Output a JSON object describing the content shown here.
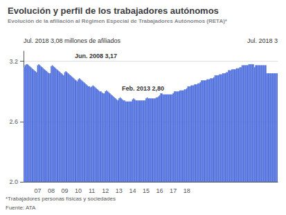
{
  "chart_data": {
    "type": "bar",
    "title": "Evolución y perfil de los trabajadores autónomos",
    "subtitle": "Evolución de la afiliación al Régimen Especial de Trabajadores Autónomos (RETA)*",
    "annotations": [
      "Jul. 2018 3,08 millones de afiliados",
      "Jul. 2018 3",
      "Jun. 2008 3,17",
      "Feb. 2013 2,80"
    ],
    "footnotes": [
      "*Trabajadores personas físicas y sociedades",
      "Fuente: ATA"
    ],
    "ylim": [
      2.0,
      3.3
    ],
    "yticks": [
      {
        "value": 2.0,
        "label": "2.0"
      },
      2.6,
      3.2
    ],
    "grid": true,
    "categories": [
      null,
      null,
      null,
      null,
      null,
      null,
      null,
      null,
      null,
      null,
      null,
      null,
      "07",
      null,
      null,
      null,
      null,
      null,
      null,
      null,
      null,
      null,
      null,
      null,
      "08",
      null,
      null,
      null,
      null,
      null,
      null,
      null,
      null,
      null,
      null,
      null,
      "09",
      null,
      null,
      null,
      null,
      null,
      null,
      null,
      null,
      null,
      null,
      null,
      "10",
      null,
      null,
      null,
      null,
      null,
      null,
      null,
      null,
      null,
      null,
      null,
      "11",
      null,
      null,
      null,
      null,
      null,
      null,
      null,
      null,
      null,
      null,
      null,
      "12",
      null,
      null,
      null,
      null,
      null,
      null,
      null,
      null,
      null,
      null,
      null,
      "13",
      null,
      null,
      null,
      null,
      null,
      null,
      null,
      null,
      null,
      null,
      null,
      "14",
      null,
      null,
      null,
      null,
      null,
      null,
      null,
      null,
      null,
      null,
      null,
      "15",
      null,
      null,
      null,
      null,
      null,
      null,
      null,
      null,
      null,
      null,
      null,
      "16",
      null,
      null,
      null,
      null,
      null,
      null,
      null,
      null,
      null,
      null,
      null,
      "17",
      null,
      null,
      null,
      null,
      null,
      null,
      null,
      null,
      null,
      null,
      null,
      "18",
      null,
      null,
      null,
      null,
      null,
      null,
      null,
      null,
      null,
      null,
      null,
      null,
      null,
      null,
      null,
      null,
      null,
      null,
      null,
      null,
      null,
      null,
      null,
      null,
      null,
      null,
      null,
      null,
      null,
      null,
      null,
      null,
      null,
      null,
      null,
      null,
      null,
      null,
      null,
      null,
      null,
      null,
      null,
      null,
      null,
      null,
      null,
      null,
      null,
      null,
      null,
      null,
      null,
      null,
      null,
      null,
      null,
      null,
      null,
      null,
      null,
      null,
      null,
      null,
      null,
      null,
      null,
      null,
      null,
      null,
      null,
      null,
      null,
      null,
      null,
      null,
      null,
      null,
      null,
      null
    ],
    "values": [
      3.14,
      3.16,
      3.17,
      3.17,
      3.16,
      3.15,
      3.14,
      3.13,
      3.12,
      3.11,
      3.1,
      3.09,
      3.16,
      3.17,
      3.16,
      3.15,
      3.14,
      3.13,
      3.12,
      3.11,
      3.1,
      3.09,
      3.08,
      3.08,
      3.15,
      3.16,
      3.15,
      3.14,
      3.13,
      3.12,
      3.11,
      3.1,
      3.09,
      3.08,
      3.07,
      3.06,
      3.09,
      3.1,
      3.09,
      3.08,
      3.07,
      3.06,
      3.05,
      3.04,
      3.03,
      3.02,
      3.01,
      3.0,
      3.02,
      3.03,
      3.02,
      3.01,
      3.0,
      2.99,
      2.98,
      2.97,
      2.96,
      2.95,
      2.95,
      2.94,
      2.95,
      2.96,
      2.95,
      2.94,
      2.93,
      2.92,
      2.91,
      2.9,
      2.9,
      2.89,
      2.88,
      2.88,
      2.9,
      2.91,
      2.9,
      2.89,
      2.88,
      2.87,
      2.86,
      2.85,
      2.84,
      2.83,
      2.82,
      2.81,
      2.83,
      2.84,
      2.83,
      2.82,
      2.81,
      2.81,
      2.8,
      2.8,
      2.8,
      2.8,
      2.8,
      2.8,
      2.82,
      2.83,
      2.82,
      2.81,
      2.81,
      2.81,
      2.81,
      2.81,
      2.81,
      2.81,
      2.81,
      2.81,
      2.83,
      2.84,
      2.83,
      2.83,
      2.83,
      2.83,
      2.83,
      2.83,
      2.83,
      2.84,
      2.84,
      2.85,
      2.86,
      2.88,
      2.88,
      2.87,
      2.87,
      2.87,
      2.87,
      2.87,
      2.87,
      2.87,
      2.87,
      2.87,
      2.88,
      2.9,
      2.9,
      2.9,
      2.9,
      2.9,
      2.91,
      2.91,
      2.91,
      2.91,
      2.92,
      2.92,
      2.93,
      2.95,
      2.95,
      2.95,
      2.96,
      2.96,
      2.96,
      2.97,
      2.97,
      2.97,
      2.98,
      2.98,
      2.99,
      3.01,
      3.01,
      3.01,
      3.01,
      3.01,
      3.02,
      3.02,
      3.02,
      3.03,
      3.03,
      3.03,
      3.04,
      3.06,
      3.06,
      3.06,
      3.06,
      3.07,
      3.07,
      3.07,
      3.08,
      3.08,
      3.08,
      3.09,
      3.09,
      3.11,
      3.11,
      3.11,
      3.12,
      3.12,
      3.12,
      3.12,
      3.13,
      3.13,
      3.13,
      3.14,
      3.14,
      3.16,
      3.16,
      3.16,
      3.16,
      3.16,
      3.16,
      3.17,
      3.17,
      3.17,
      3.17,
      3.17,
      3.14,
      3.16,
      3.16,
      3.16,
      3.16,
      3.16,
      3.16,
      3.16,
      3.16,
      3.16,
      3.16,
      3.08,
      3.08,
      3.08,
      3.08,
      3.08,
      3.08,
      3.08,
      3.08,
      3.08,
      3.08
    ]
  }
}
